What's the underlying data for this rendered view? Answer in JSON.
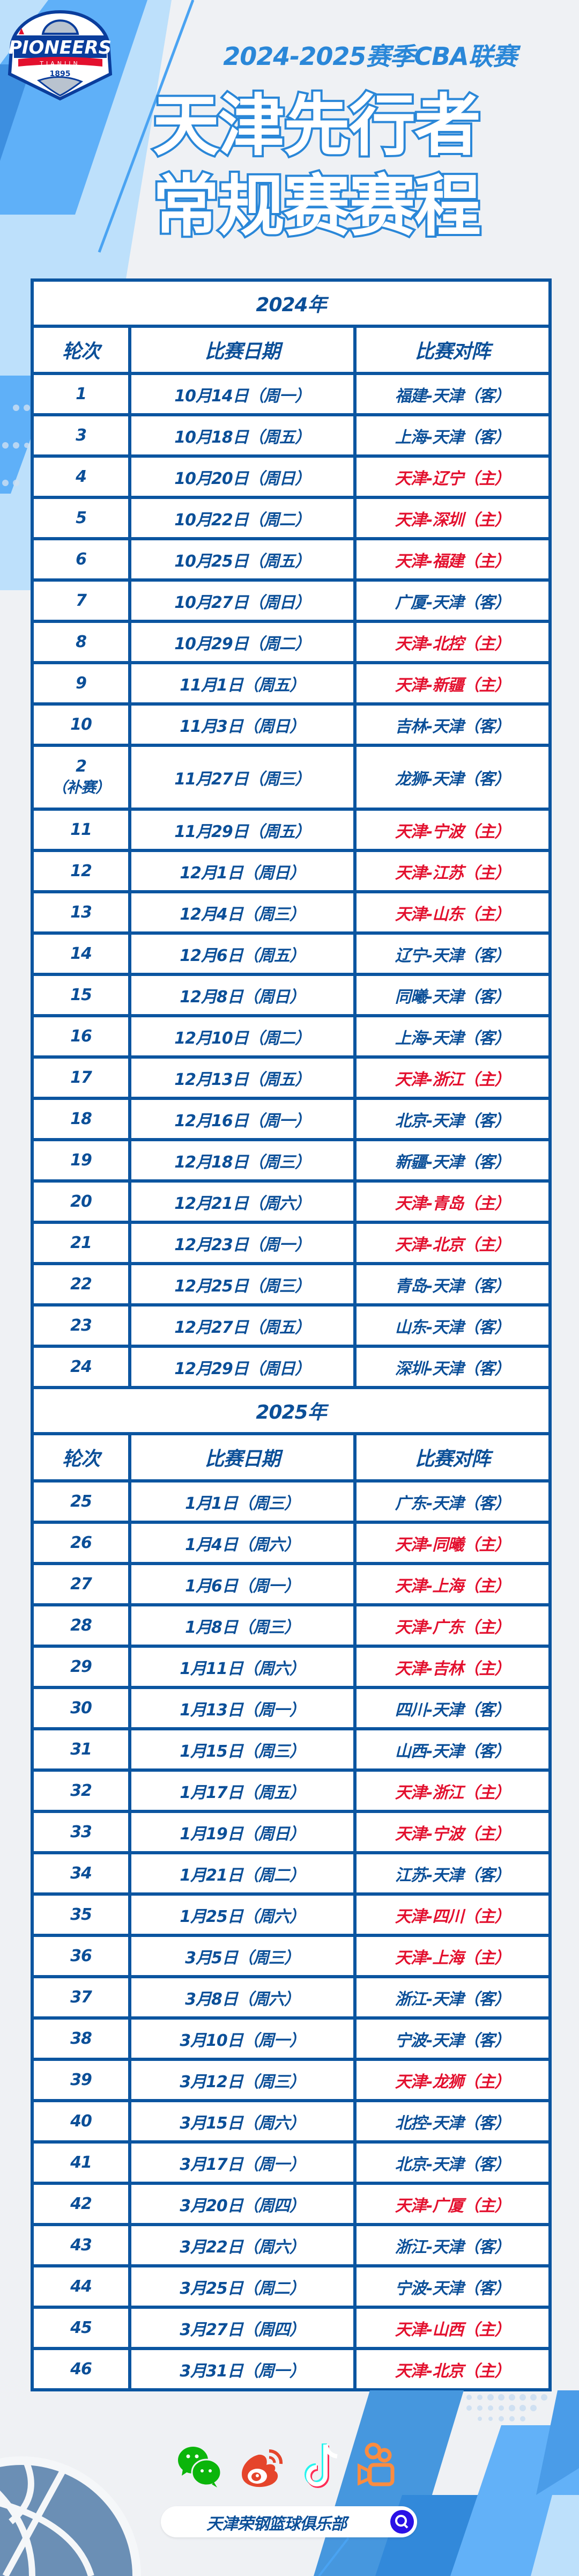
{
  "header": {
    "logo": {
      "name": "PIONEERS",
      "city": "TIANJIN",
      "year": "1895"
    },
    "season_title": "2024-2025赛季CBA联赛",
    "title_line1": "天津先行者",
    "title_line2": "常规赛赛程"
  },
  "colors": {
    "primary_blue": "#0b55a0",
    "accent_blue": "#2a87d8",
    "home_red": "#e3102e",
    "background": "#eff1f4"
  },
  "columns": {
    "round": "轮次",
    "date": "比赛日期",
    "match": "比赛对阵"
  },
  "sections": [
    {
      "year": "2024年",
      "rows": [
        {
          "round": "1",
          "date": "10月14日（周一）",
          "match": "福建-天津（客）",
          "home": false
        },
        {
          "round": "3",
          "date": "10月18日（周五）",
          "match": "上海-天津（客）",
          "home": false
        },
        {
          "round": "4",
          "date": "10月20日（周日）",
          "match": "天津-辽宁（主）",
          "home": true
        },
        {
          "round": "5",
          "date": "10月22日（周二）",
          "match": "天津-深圳（主）",
          "home": true
        },
        {
          "round": "6",
          "date": "10月25日（周五）",
          "match": "天津-福建（主）",
          "home": true
        },
        {
          "round": "7",
          "date": "10月27日（周日）",
          "match": "广厦-天津（客）",
          "home": false
        },
        {
          "round": "8",
          "date": "10月29日（周二）",
          "match": "天津-北控（主）",
          "home": true
        },
        {
          "round": "9",
          "date": "11月1日（周五）",
          "match": "天津-新疆（主）",
          "home": true
        },
        {
          "round": "10",
          "date": "11月3日（周日）",
          "match": "吉林-天津（客）",
          "home": false
        },
        {
          "round": "2",
          "note": "（补赛）",
          "date": "11月27日（周三）",
          "match": "龙狮-天津（客）",
          "home": false
        },
        {
          "round": "11",
          "date": "11月29日（周五）",
          "match": "天津-宁波（主）",
          "home": true
        },
        {
          "round": "12",
          "date": "12月1日（周日）",
          "match": "天津-江苏（主）",
          "home": true
        },
        {
          "round": "13",
          "date": "12月4日（周三）",
          "match": "天津-山东（主）",
          "home": true
        },
        {
          "round": "14",
          "date": "12月6日（周五）",
          "match": "辽宁-天津（客）",
          "home": false
        },
        {
          "round": "15",
          "date": "12月8日（周日）",
          "match": "同曦-天津（客）",
          "home": false
        },
        {
          "round": "16",
          "date": "12月10日（周二）",
          "match": "上海-天津（客）",
          "home": false
        },
        {
          "round": "17",
          "date": "12月13日（周五）",
          "match": "天津-浙江（主）",
          "home": true
        },
        {
          "round": "18",
          "date": "12月16日（周一）",
          "match": "北京-天津（客）",
          "home": false
        },
        {
          "round": "19",
          "date": "12月18日（周三）",
          "match": "新疆-天津（客）",
          "home": false
        },
        {
          "round": "20",
          "date": "12月21日（周六）",
          "match": "天津-青岛（主）",
          "home": true
        },
        {
          "round": "21",
          "date": "12月23日（周一）",
          "match": "天津-北京（主）",
          "home": true
        },
        {
          "round": "22",
          "date": "12月25日（周三）",
          "match": "青岛-天津（客）",
          "home": false
        },
        {
          "round": "23",
          "date": "12月27日（周五）",
          "match": "山东-天津（客）",
          "home": false
        },
        {
          "round": "24",
          "date": "12月29日（周日）",
          "match": "深圳-天津（客）",
          "home": false
        }
      ]
    },
    {
      "year": "2025年",
      "rows": [
        {
          "round": "25",
          "date": "1月1日（周三）",
          "match": "广东-天津（客）",
          "home": false
        },
        {
          "round": "26",
          "date": "1月4日（周六）",
          "match": "天津-同曦（主）",
          "home": true
        },
        {
          "round": "27",
          "date": "1月6日（周一）",
          "match": "天津-上海（主）",
          "home": true
        },
        {
          "round": "28",
          "date": "1月8日（周三）",
          "match": "天津-广东（主）",
          "home": true
        },
        {
          "round": "29",
          "date": "1月11日（周六）",
          "match": "天津-吉林（主）",
          "home": true
        },
        {
          "round": "30",
          "date": "1月13日（周一）",
          "match": "四川-天津（客）",
          "home": false
        },
        {
          "round": "31",
          "date": "1月15日（周三）",
          "match": "山西-天津（客）",
          "home": false
        },
        {
          "round": "32",
          "date": "1月17日（周五）",
          "match": "天津-浙江（主）",
          "home": true
        },
        {
          "round": "33",
          "date": "1月19日（周日）",
          "match": "天津-宁波（主）",
          "home": true
        },
        {
          "round": "34",
          "date": "1月21日（周二）",
          "match": "江苏-天津（客）",
          "home": false
        },
        {
          "round": "35",
          "date": "1月25日（周六）",
          "match": "天津-四川（主）",
          "home": true
        },
        {
          "round": "36",
          "date": "3月5日（周三）",
          "match": "天津-上海（主）",
          "home": true
        },
        {
          "round": "37",
          "date": "3月8日（周六）",
          "match": "浙江-天津（客）",
          "home": false
        },
        {
          "round": "38",
          "date": "3月10日（周一）",
          "match": "宁波-天津（客）",
          "home": false
        },
        {
          "round": "39",
          "date": "3月12日（周三）",
          "match": "天津-龙狮（主）",
          "home": true
        },
        {
          "round": "40",
          "date": "3月15日（周六）",
          "match": "北控-天津（客）",
          "home": false
        },
        {
          "round": "41",
          "date": "3月17日（周一）",
          "match": "北京-天津（客）",
          "home": false
        },
        {
          "round": "42",
          "date": "3月20日（周四）",
          "match": "天津-广厦（主）",
          "home": true
        },
        {
          "round": "43",
          "date": "3月22日（周六）",
          "match": "浙江-天津（客）",
          "home": false
        },
        {
          "round": "44",
          "date": "3月25日（周二）",
          "match": "宁波-天津（客）",
          "home": false
        },
        {
          "round": "45",
          "date": "3月27日（周四）",
          "match": "天津-山西（主）",
          "home": true
        },
        {
          "round": "46",
          "date": "3月31日（周一）",
          "match": "天津-北京（主）",
          "home": true
        }
      ]
    }
  ],
  "footer": {
    "social_icons": [
      "wechat-icon",
      "weibo-icon",
      "douyin-icon",
      "kuaishou-icon"
    ],
    "search_text": "天津荣钢篮球俱乐部",
    "search_icon": "search-icon"
  }
}
